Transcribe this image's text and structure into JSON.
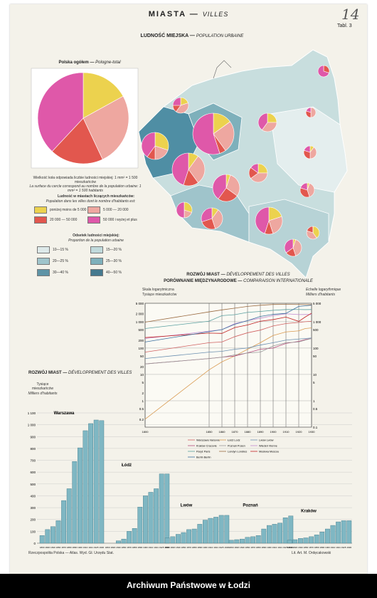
{
  "header": {
    "title": "MIASTA",
    "title_fr": "VILLES",
    "tabl": "Tabl. 3",
    "handwritten": "14"
  },
  "map": {
    "title": "LUDNOŚĆ MIEJSKA",
    "title_fr": "POPULATION URBAINE",
    "note1": "Wielkość koła odpowiada liczbie ludności miejskiej: 1 mm² = 1 500 mieszkańców",
    "note2": "La surface du cercle correspond au nombre de la population urbaine: 1 mm² = 1 500 habitants"
  },
  "pie": {
    "title": "Polska ogółem",
    "title_fr": "Pologne-total",
    "colors": [
      "#ecd24e",
      "#eea7a0",
      "#e2574e",
      "#df58a9"
    ]
  },
  "legend_size": {
    "title": "Ludność w miastach liczących mieszkańców:",
    "title_fr": "Population dans les villes dont le nombre d'habitants est:",
    "items": [
      {
        "label": "poniżej moins de 5 000",
        "color": "#ecd24e"
      },
      {
        "label": "5 000 — 20 000",
        "color": "#eea7a0"
      },
      {
        "label": "20 000 — 50 000",
        "color": "#e2574e"
      },
      {
        "label": "50 000 i wyżej et plus",
        "color": "#df58a9"
      }
    ]
  },
  "legend_pct": {
    "title": "Odsetek ludności miejskiej:",
    "title_fr": "Proportion de la population urbaine",
    "items": [
      {
        "label": "10—15 %",
        "color": "#dde9e9"
      },
      {
        "label": "15—20 %",
        "color": "#c0d9db"
      },
      {
        "label": "20—25 %",
        "color": "#9fc4cb"
      },
      {
        "label": "25—30 %",
        "color": "#7eb0bb"
      },
      {
        "label": "30—40 %",
        "color": "#5e94a6"
      },
      {
        "label": "40—50 %",
        "color": "#45798f"
      }
    ]
  },
  "line_chart_titles": {
    "t1": "ROZWÓJ MIAST",
    "t1_fr": "DÉVELOPPEMENT DES VILLES",
    "t2": "PORÓWNANIE MIĘDZYNARODOWE",
    "t2_fr": "COMPARAISON INTERNATIONALE",
    "left_axis": "Skala logarytmiczna",
    "left_axis2": "Tysiące mieszkańców",
    "right_axis": "Echelle logarythmique",
    "right_axis2": "Milliers d'habitants"
  },
  "bar_chart_titles": {
    "title": "ROZWÓJ MIAST",
    "title_fr": "DÉVELOPPEMENT DES VILLES",
    "ylabel1": "Tysiące mieszkańców",
    "ylabel2": "Milliers d'habitants"
  },
  "chart_data": [
    {
      "type": "pie",
      "title": "Polska ogółem — Pologne-total",
      "categories": [
        "poniżej 5 000",
        "5 000 — 20 000",
        "20 000 — 50 000",
        "50 000 i wyżej"
      ],
      "values": [
        17,
        26,
        19,
        38
      ]
    },
    {
      "type": "line",
      "title": "ROZWÓJ MIAST — PORÓWNANIE MIĘDZYNARODOWE",
      "ylabel": "Tysiące mieszkańców",
      "log_scale": true,
      "ylim": [
        0.1,
        5000
      ],
      "x": [
        1800,
        1850,
        1860,
        1870,
        1880,
        1890,
        1900,
        1910,
        1920,
        1925,
        1930
      ],
      "yticks_left": [
        "5 000",
        "2 000",
        "1 000",
        "500",
        "200",
        "100",
        "50",
        "20",
        "10",
        "5",
        "2",
        "1",
        "0.5",
        "0.2"
      ],
      "yticks_right": [
        "5 000",
        "1 000",
        "500",
        "100",
        "50",
        "10",
        "5",
        "1",
        "0.5",
        "0.1"
      ],
      "xticks": [
        "1800",
        "1850",
        "1860",
        "1870",
        "1880",
        "1890",
        "1900",
        "1910",
        "1920",
        "1930"
      ],
      "series": [
        {
          "name": "Warszawa Varsovie",
          "color": "#d06060",
          "values": [
            70,
            160,
            170,
            270,
            380,
            480,
            690,
            850,
            940,
            1000,
            1040
          ]
        },
        {
          "name": "Łódź Lodz",
          "color": "#d99a50",
          "values": [
            0.2,
            15,
            30,
            50,
            90,
            160,
            300,
            410,
            450,
            550,
            580
          ]
        },
        {
          "name": "Lwów Lwów",
          "color": "#6a8fb0",
          "values": [
            40,
            70,
            75,
            90,
            100,
            130,
            160,
            200,
            220,
            230,
            240
          ]
        },
        {
          "name": "Kraków Cracovie",
          "color": "#b34a7a",
          "values": [
            25,
            40,
            45,
            50,
            66,
            90,
            100,
            150,
            180,
            210,
            230
          ]
        },
        {
          "name": "Poznań Posen",
          "color": "#999999",
          "values": [
            25,
            40,
            45,
            55,
            65,
            70,
            120,
            160,
            170,
            200,
            230
          ]
        },
        {
          "name": "Wiedeń Vienne",
          "color": "#c08bd0",
          "values": [
            230,
            440,
            500,
            840,
            1100,
            1360,
            1700,
            2000,
            1860,
            1870,
            1880
          ]
        },
        {
          "name": "Paryż Paris",
          "color": "#5aa0a0",
          "values": [
            550,
            1050,
            1700,
            1850,
            2260,
            2450,
            2700,
            2890,
            2900,
            2870,
            2890
          ]
        },
        {
          "name": "Londyn Londres",
          "color": "#9a6a40",
          "values": [
            960,
            2360,
            2800,
            3260,
            3800,
            4200,
            4500,
            4520,
            4480,
            4450,
            4400
          ]
        },
        {
          "name": "Moskwa Moscou",
          "color": "#c02020",
          "values": [
            250,
            370,
            360,
            600,
            750,
            1040,
            1200,
            1500,
            1030,
            1500,
            2100
          ]
        },
        {
          "name": "Berlin Berlin",
          "color": "#3a70a0",
          "values": [
            170,
            420,
            500,
            800,
            1100,
            1580,
            1900,
            2070,
            3800,
            4000,
            4250
          ]
        }
      ]
    },
    {
      "type": "bar",
      "title": "ROZWÓJ MIAST — DÉVELOPPEMENT DES VILLES",
      "ylabel": "Tysiące mieszkańców",
      "ylim": [
        0,
        1100
      ],
      "yticks": [
        "0",
        "100",
        "200",
        "300",
        "400",
        "500",
        "600",
        "700",
        "800",
        "900",
        "1 000",
        "1 100"
      ],
      "categories": [
        "1800",
        "1820",
        "1840",
        "1860",
        "1870",
        "1880",
        "1890",
        "1900",
        "1910",
        "1921",
        "1925",
        "1930"
      ],
      "series": [
        {
          "name": "Warszawa",
          "values": [
            65,
            115,
            140,
            190,
            360,
            460,
            690,
            805,
            950,
            1010,
            1040,
            1035
          ]
        },
        {
          "name": "Łódź",
          "values": [
            0,
            0,
            20,
            35,
            100,
            125,
            305,
            400,
            430,
            460,
            585,
            585
          ]
        },
        {
          "name": "Lwów",
          "values": [
            45,
            55,
            75,
            90,
            115,
            120,
            160,
            195,
            210,
            220,
            235,
            235
          ]
        },
        {
          "name": "Poznań",
          "values": [
            25,
            30,
            35,
            50,
            55,
            65,
            120,
            150,
            160,
            170,
            215,
            230
          ]
        },
        {
          "name": "Kraków",
          "values": [
            25,
            30,
            40,
            45,
            55,
            70,
            95,
            120,
            150,
            180,
            190,
            190
          ]
        }
      ]
    }
  ],
  "footer": {
    "text": "Archiwum Państwowe w Łodzi",
    "left": "Rzeczpospolita Polska — Atlas. Wyd. Gł. Urzędu Stat.",
    "right": "Lit. Art. M. Ordęcakowski"
  }
}
